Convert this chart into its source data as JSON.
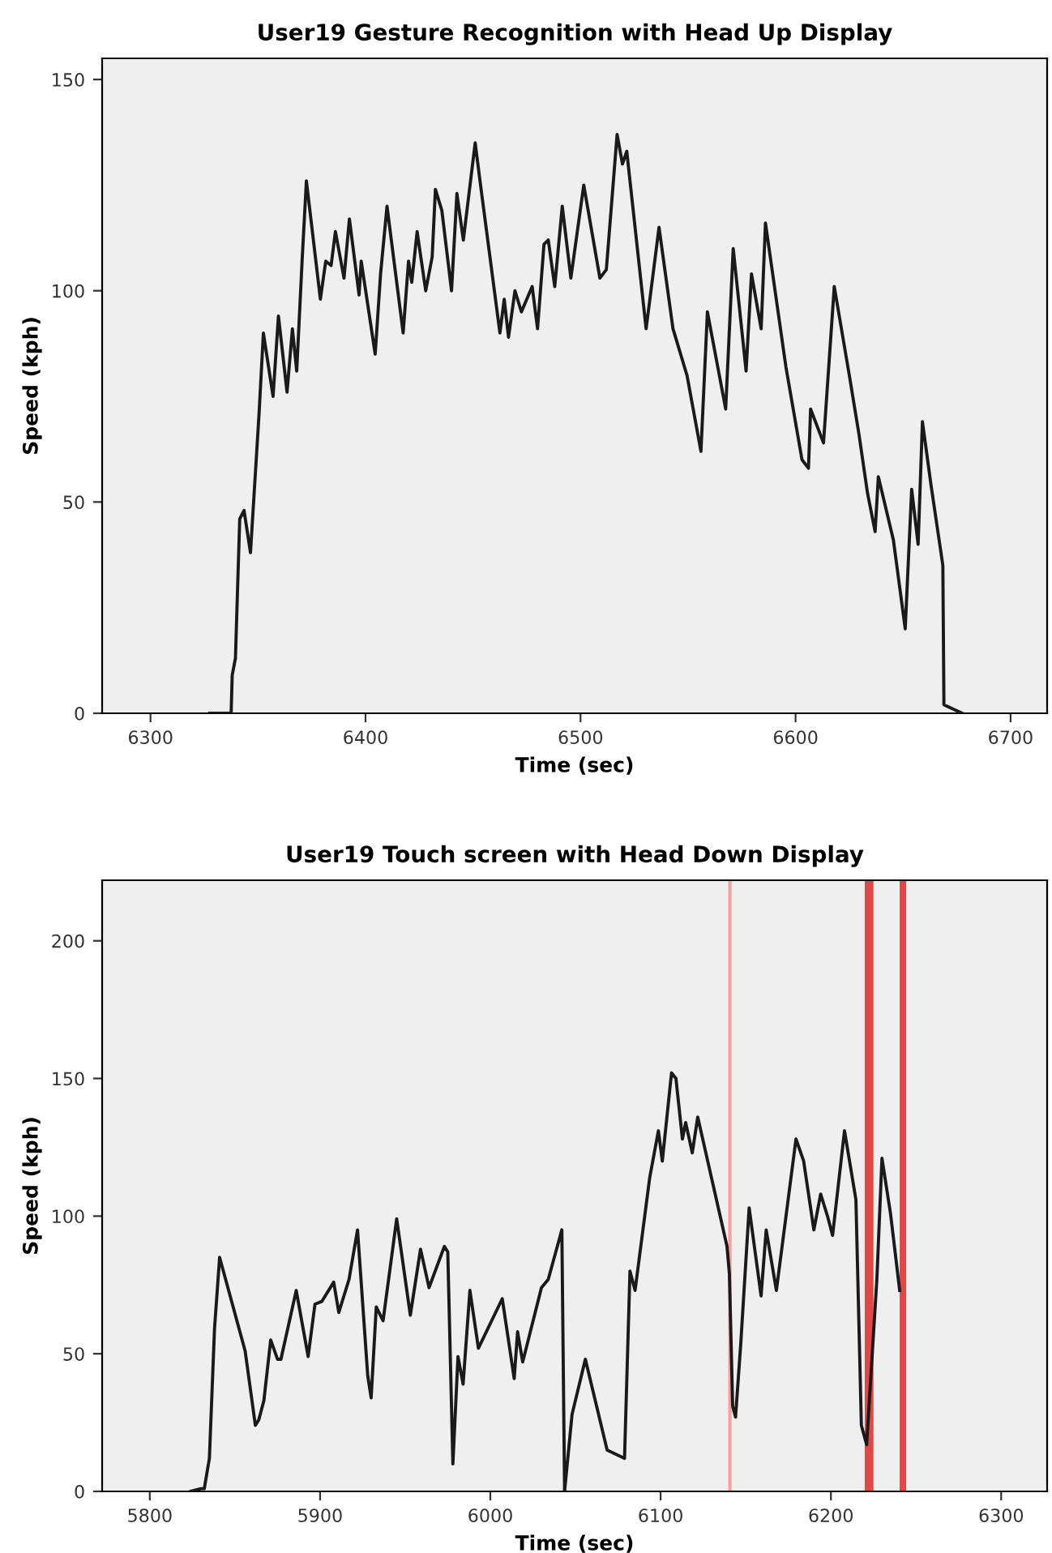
{
  "chart_data": [
    {
      "type": "line",
      "title": "User19 Gesture Recognition with Head Up Display",
      "xlabel": "Time (sec)",
      "ylabel": "Speed (kph)",
      "xlim": [
        6277.5,
        6717
      ],
      "ylim": [
        0,
        155
      ],
      "xticks": [
        6300,
        6400,
        6500,
        6600,
        6700
      ],
      "yticks": [
        0,
        50,
        100,
        150
      ],
      "grid": false,
      "series": [
        {
          "color": "#1a1a1a",
          "x": [
            6327.5,
            6337.5,
            6338,
            6339.5,
            6341.5,
            6343.5,
            6346.5,
            6350.5,
            6352.5,
            6357,
            6359.5,
            6363.5,
            6366,
            6368,
            6370.5,
            6372.5,
            6379,
            6381.5,
            6384,
            6386,
            6390,
            6392.5,
            6397,
            6398,
            6404.5,
            6407,
            6410,
            6417.5,
            6420,
            6421.5,
            6424,
            6428,
            6431,
            6432.5,
            6435.5,
            6440,
            6442.5,
            6445.5,
            6451,
            6453.5,
            6462.5,
            6464.5,
            6466.5,
            6469.5,
            6472.5,
            6477.5,
            6480,
            6483,
            6485,
            6488,
            6491.5,
            6495.5,
            6501.5,
            6509,
            6512,
            6517,
            6519.5,
            6521.5,
            6530.5,
            6536.5,
            6543,
            6549.5,
            6556,
            6559,
            6567.5,
            6571,
            6577,
            6579.5,
            6584,
            6586,
            6595.5,
            6603,
            6606,
            6607,
            6613,
            6618,
            6625,
            6629.5,
            6633.5,
            6637,
            6638.5,
            6645.5,
            6651,
            6654,
            6657,
            6659,
            6663,
            6668.5,
            6669,
            6677.5
          ],
          "values": [
            0,
            0,
            9,
            13,
            46,
            48,
            38,
            71,
            90,
            75,
            94,
            76,
            91,
            81,
            107,
            126,
            98,
            107,
            106,
            114,
            103,
            117,
            99,
            107,
            85,
            104,
            120,
            90,
            107,
            102,
            114,
            100,
            108,
            124,
            119,
            100,
            123,
            112,
            135,
            125,
            90,
            98,
            89,
            100,
            95,
            101,
            91,
            111,
            112,
            101,
            120,
            103,
            125,
            103,
            105,
            137,
            130,
            133,
            91,
            115,
            91,
            80,
            62,
            95,
            72,
            110,
            81,
            104,
            91,
            116,
            82,
            60,
            58,
            72,
            64,
            101,
            80,
            66,
            52,
            43,
            56,
            41,
            20,
            53,
            40,
            69,
            54,
            35,
            2,
            0
          ]
        }
      ]
    },
    {
      "type": "line",
      "title": "User19 Touch screen with Head Down Display",
      "xlabel": "Time (sec)",
      "ylabel": "Speed (kph)",
      "xlim": [
        5772,
        6327
      ],
      "ylim": [
        0,
        222
      ],
      "xticks": [
        5800,
        5900,
        6000,
        6100,
        6200,
        6300
      ],
      "yticks": [
        0,
        50,
        100,
        150,
        200
      ],
      "grid": false,
      "ref_lines": [
        {
          "axis": "x",
          "value": 6140.7,
          "color": "#f4a0a0"
        }
      ],
      "bands": [
        {
          "axis": "x",
          "from": 6219.9,
          "to": 6225.0,
          "color": "#e04848"
        },
        {
          "axis": "x",
          "from": 6240.4,
          "to": 6244.2,
          "color": "#e04848"
        }
      ],
      "series": [
        {
          "color": "#1a1a1a",
          "x": [
            5824,
            5830,
            5832,
            5835,
            5838,
            5841,
            5856,
            5862,
            5864,
            5867,
            5871,
            5875,
            5877,
            5886,
            5893,
            5897,
            5901,
            5908,
            5911,
            5917,
            5922,
            5928,
            5930,
            5933,
            5937,
            5945,
            5953,
            5959,
            5964,
            5973,
            5975,
            5978,
            5981,
            5984,
            5988,
            5993,
            6007,
            6014,
            6016,
            6019,
            6030,
            6034,
            6042,
            6043.6,
            6048,
            6055.8,
            6068.6,
            6078.8,
            6082,
            6085,
            6093.6,
            6098.7,
            6101,
            6106.4,
            6109,
            6112.8,
            6114.7,
            6118.6,
            6121.8,
            6139,
            6140.4,
            6142.3,
            6144,
            6147,
            6152,
            6159,
            6162,
            6168,
            6179.5,
            6184,
            6190,
            6194,
            6198,
            6201,
            6208,
            6214.7,
            6217.9,
            6221,
            6227,
            6230,
            6235,
            6240.4
          ],
          "values": [
            0,
            1,
            1,
            12,
            59,
            85,
            51,
            24,
            26,
            33,
            55,
            48,
            48,
            73,
            49,
            68,
            69,
            76,
            65,
            77,
            95,
            42,
            34,
            67,
            62,
            99,
            64,
            88,
            74,
            89,
            87,
            10,
            49,
            39,
            73,
            52,
            70,
            41,
            58,
            47,
            74,
            77,
            95,
            0,
            28,
            48,
            15,
            12,
            80,
            73,
            114,
            131,
            120,
            152,
            150,
            128,
            134,
            123,
            136,
            89,
            79,
            31,
            27,
            53,
            103,
            71,
            95,
            73,
            128,
            120,
            95,
            108,
            100,
            93,
            131,
            106,
            24,
            17,
            77,
            121,
            101,
            73
          ]
        }
      ]
    }
  ]
}
